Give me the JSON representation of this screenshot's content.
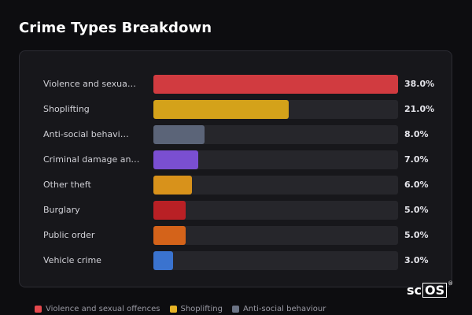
{
  "title": "Crime Types Breakdown",
  "chart_data": {
    "type": "bar",
    "orientation": "horizontal",
    "title": "Crime Types Breakdown",
    "categories": [
      "Violence and sexua…",
      "Shoplifting",
      "Anti-social behavi…",
      "Criminal damage an…",
      "Other theft",
      "Burglary",
      "Public order",
      "Vehicle crime"
    ],
    "values": [
      38.0,
      21.0,
      8.0,
      7.0,
      6.0,
      5.0,
      5.0,
      3.0
    ],
    "value_labels": [
      "38.0%",
      "21.0%",
      "8.0%",
      "7.0%",
      "6.0%",
      "5.0%",
      "5.0%",
      "3.0%"
    ],
    "colors": [
      "#d13b40",
      "#d4a21a",
      "#5b6478",
      "#7a4fd1",
      "#d8921b",
      "#b92025",
      "#d4631a",
      "#3a73cf"
    ],
    "xlim": [
      0,
      38
    ],
    "grid": false
  },
  "legend": [
    {
      "label": "Violence and sexual offences",
      "color": "#e5484d"
    },
    {
      "label": "Shoplifting",
      "color": "#e6b325"
    },
    {
      "label": "Anti-social behaviour",
      "color": "#6b7385"
    }
  ],
  "logo": {
    "prefix": "sc",
    "boxed": "OS",
    "mark": "®"
  }
}
